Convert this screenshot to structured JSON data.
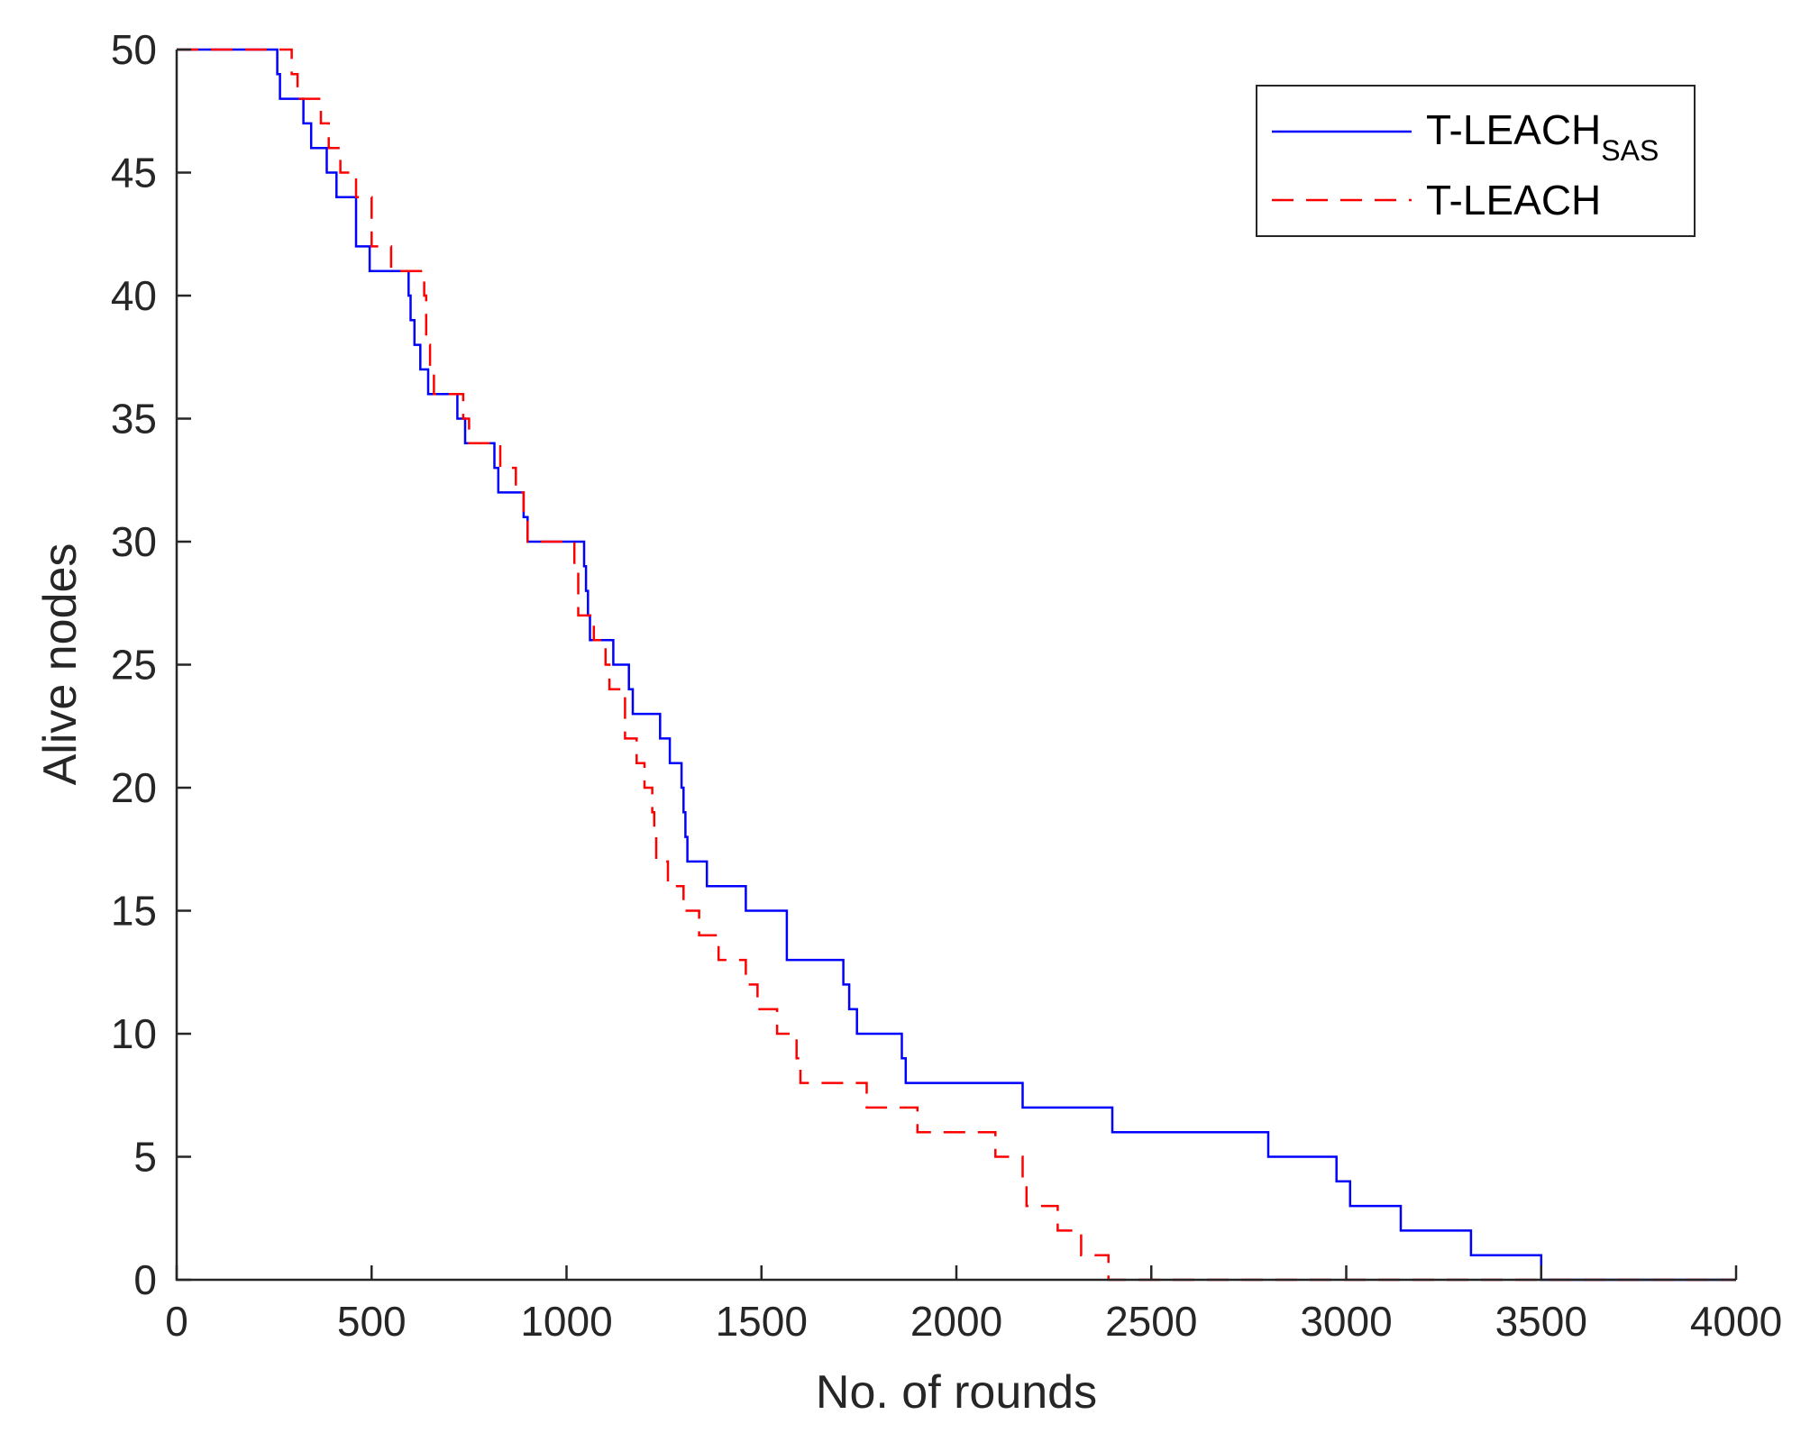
{
  "chart_data": {
    "type": "line",
    "title": "",
    "xlabel": "No. of rounds",
    "ylabel": "Alive nodes",
    "xlim": [
      0,
      4000
    ],
    "ylim": [
      0,
      50
    ],
    "xticks": [
      "0",
      "500",
      "1000",
      "1500",
      "2000",
      "2500",
      "3000",
      "3500",
      "4000"
    ],
    "yticks": [
      "0",
      "5",
      "10",
      "15",
      "20",
      "25",
      "30",
      "35",
      "40",
      "45",
      "50"
    ],
    "grid": false,
    "legend_position": "top-right",
    "series": [
      {
        "name": "T-LEACH",
        "name_subscript": "SAS",
        "color": "#0000ff",
        "line_style": "solid",
        "step": true,
        "x": [
          0,
          258,
          265,
          300,
          325,
          345,
          385,
          410,
          460,
          495,
          585,
          595,
          600,
          610,
          625,
          645,
          700,
          720,
          740,
          815,
          825,
          890,
          900,
          1040,
          1045,
          1050,
          1055,
          1060,
          1065,
          1120,
          1150,
          1160,
          1170,
          1210,
          1240,
          1265,
          1295,
          1300,
          1305,
          1310,
          1360,
          1460,
          1565,
          1710,
          1725,
          1745,
          1795,
          1860,
          1870,
          2170,
          2400,
          2800,
          2975,
          3010,
          3140,
          3320,
          3500,
          4000
        ],
        "y": [
          50,
          49,
          48,
          48,
          47,
          46,
          45,
          44,
          42,
          41,
          41,
          40,
          39,
          38,
          37,
          36,
          36,
          35,
          34,
          33,
          32,
          31,
          30,
          30,
          29,
          28,
          27,
          26,
          26,
          25,
          25,
          24,
          23,
          23,
          22,
          21,
          20,
          19,
          18,
          17,
          16,
          15,
          13,
          12,
          11,
          10,
          10,
          9,
          8,
          7,
          6,
          5,
          4,
          3,
          2,
          1,
          0,
          0
        ]
      },
      {
        "name": "T-LEACH",
        "color": "#ff0000",
        "line_style": "dashed",
        "step": true,
        "x": [
          0,
          295,
          310,
          340,
          370,
          390,
          420,
          460,
          480,
          500,
          550,
          635,
          640,
          650,
          660,
          700,
          735,
          750,
          830,
          870,
          890,
          900,
          1020,
          1030,
          1070,
          1100,
          1110,
          1150,
          1180,
          1200,
          1220,
          1225,
          1230,
          1260,
          1300,
          1340,
          1390,
          1460,
          1490,
          1510,
          1540,
          1590,
          1600,
          1680,
          1770,
          1780,
          1900,
          2000,
          2100,
          2170,
          2180,
          2200,
          2260,
          2320,
          2390,
          4000
        ],
        "y": [
          50,
          49,
          48,
          48,
          47,
          46,
          45,
          44,
          44,
          42,
          41,
          40,
          38,
          37,
          36,
          36,
          35,
          34,
          33,
          32,
          31,
          30,
          29,
          27,
          26,
          25,
          24,
          22,
          21,
          20,
          19,
          18,
          17,
          16,
          15,
          14,
          13,
          12,
          11,
          11,
          10,
          9,
          8,
          8,
          7,
          7,
          6,
          6,
          5,
          4,
          3,
          3,
          2,
          1,
          0,
          0
        ]
      }
    ]
  }
}
